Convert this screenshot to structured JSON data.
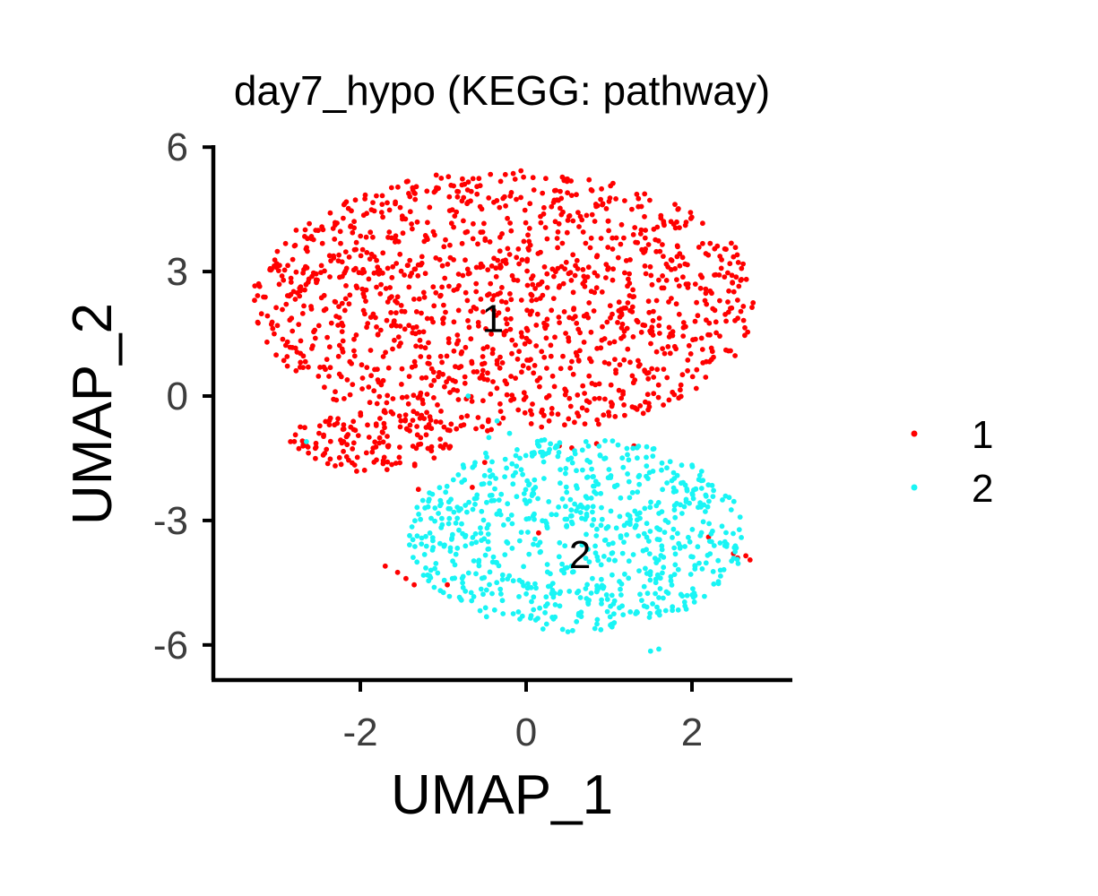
{
  "chart_data": {
    "type": "scatter",
    "title": "day7_hypo (KEGG: pathway)",
    "xlabel": "UMAP_1",
    "ylabel": "UMAP_2",
    "xlim": [
      -3.5,
      3.1
    ],
    "ylim": [
      -6.8,
      6.0
    ],
    "x_ticks": [
      -2,
      0,
      2
    ],
    "x_tick_labels": [
      "-2",
      "0",
      "2"
    ],
    "y_ticks": [
      6,
      3,
      0,
      -3,
      -6
    ],
    "y_tick_labels": [
      "6",
      "3",
      "0",
      "-3",
      "-6"
    ],
    "grid": false,
    "legend_position": "right",
    "series": [
      {
        "name": "1",
        "color": "#ff0000",
        "cluster_label": "1",
        "label_pos": [
          -0.4,
          1.8
        ],
        "regions": [
          {
            "shape": "ellipse",
            "center": [
              -0.25,
              2.25
            ],
            "radii": [
              3.05,
              3.2
            ],
            "n": 1300
          },
          {
            "shape": "ellipse",
            "center": [
              -1.9,
              -1.1
            ],
            "radii": [
              1.0,
              0.75
            ],
            "n": 130
          }
        ],
        "outliers": [
          [
            2.55,
            -3.9
          ],
          [
            2.65,
            -3.85
          ],
          [
            2.7,
            -3.95
          ],
          [
            2.5,
            -3.8
          ],
          [
            2.2,
            -3.4
          ],
          [
            -1.7,
            -4.1
          ],
          [
            -1.55,
            -4.25
          ],
          [
            -1.45,
            -4.4
          ],
          [
            -1.35,
            -4.55
          ],
          [
            -1.3,
            -2.25
          ],
          [
            -0.65,
            -2.2
          ],
          [
            -0.5,
            -1.6
          ],
          [
            0.4,
            -1.2
          ],
          [
            0.55,
            -1.25
          ],
          [
            0.85,
            -1.15
          ],
          [
            1.3,
            -1.2
          ],
          [
            -0.95,
            -4.55
          ],
          [
            0.15,
            -3.3
          ]
        ]
      },
      {
        "name": "2",
        "color": "#19f5f5",
        "cluster_label": "2",
        "label_pos": [
          0.65,
          -3.9
        ],
        "regions": [
          {
            "shape": "ellipse",
            "center": [
              0.6,
              -3.35
            ],
            "radii": [
              2.05,
              2.35
            ],
            "n": 760
          }
        ],
        "outliers": [
          [
            -0.7,
            0.0
          ],
          [
            -2.65,
            -1.1
          ],
          [
            -1.1,
            -2.7
          ],
          [
            1.5,
            -6.15
          ],
          [
            1.6,
            -6.1
          ],
          [
            -0.35,
            -0.6
          ],
          [
            -0.2,
            -0.9
          ],
          [
            -0.45,
            -1.0
          ]
        ]
      }
    ]
  }
}
